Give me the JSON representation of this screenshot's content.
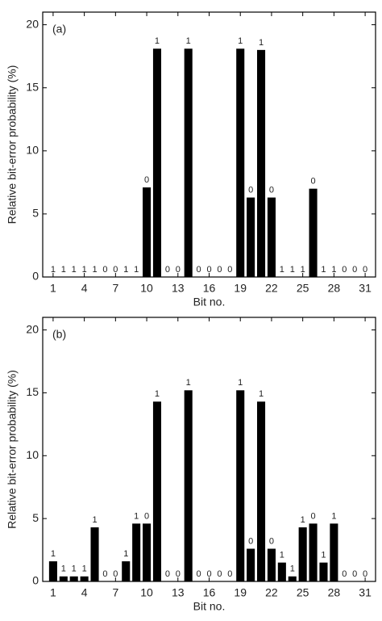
{
  "chart_data": [
    {
      "type": "bar",
      "annotation": "(a)",
      "xlabel": "Bit no.",
      "ylabel": "Relative bit-error probability (%)",
      "categories": [
        1,
        2,
        3,
        4,
        5,
        6,
        7,
        8,
        9,
        10,
        11,
        12,
        13,
        14,
        15,
        16,
        17,
        18,
        19,
        20,
        21,
        22,
        23,
        24,
        25,
        26,
        27,
        28,
        29,
        30,
        31
      ],
      "values": [
        0,
        0,
        0,
        0,
        0,
        0,
        0,
        0,
        0,
        7.1,
        18.1,
        0,
        0,
        18.1,
        0,
        0,
        0,
        0,
        18.1,
        6.3,
        18.0,
        6.3,
        0,
        0,
        0,
        7.0,
        0,
        0,
        0,
        0,
        0
      ],
      "bit_labels": [
        "1",
        "1",
        "1",
        "1",
        "1",
        "0",
        "0",
        "1",
        "1",
        "0",
        "1",
        "0",
        "0",
        "1",
        "0",
        "0",
        "0",
        "0",
        "1",
        "0",
        "1",
        "0",
        "1",
        "1",
        "1",
        "0",
        "1",
        "1",
        "0",
        "0",
        "0"
      ],
      "color": "#000000",
      "xlim": [
        0,
        32
      ],
      "xticks": [
        1,
        4,
        7,
        10,
        13,
        16,
        19,
        22,
        25,
        28,
        31
      ],
      "ylim": [
        0,
        21
      ],
      "yticks": [
        0,
        5,
        10,
        15,
        20
      ]
    },
    {
      "type": "bar",
      "annotation": "(b)",
      "xlabel": "Bit no.",
      "ylabel": "Relative bit-error probability (%)",
      "categories": [
        1,
        2,
        3,
        4,
        5,
        6,
        7,
        8,
        9,
        10,
        11,
        12,
        13,
        14,
        15,
        16,
        17,
        18,
        19,
        20,
        21,
        22,
        23,
        24,
        25,
        26,
        27,
        28,
        29,
        30,
        31
      ],
      "values": [
        1.6,
        0.4,
        0.4,
        0.4,
        4.3,
        0,
        0,
        1.6,
        4.6,
        4.6,
        14.3,
        0,
        0,
        15.2,
        0,
        0,
        0,
        0,
        15.2,
        2.6,
        14.3,
        2.6,
        1.5,
        0.4,
        4.3,
        4.6,
        1.5,
        4.6,
        0,
        0,
        0
      ],
      "bit_labels": [
        "1",
        "1",
        "1",
        "1",
        "1",
        "0",
        "0",
        "1",
        "1",
        "0",
        "1",
        "0",
        "0",
        "1",
        "0",
        "0",
        "0",
        "0",
        "1",
        "0",
        "1",
        "0",
        "1",
        "1",
        "1",
        "0",
        "1",
        "1",
        "0",
        "0",
        "0"
      ],
      "color": "#000000",
      "xlim": [
        0,
        32
      ],
      "xticks": [
        1,
        4,
        7,
        10,
        13,
        16,
        19,
        22,
        25,
        28,
        31
      ],
      "ylim": [
        0,
        21
      ],
      "yticks": [
        0,
        5,
        10,
        15,
        20
      ]
    }
  ]
}
